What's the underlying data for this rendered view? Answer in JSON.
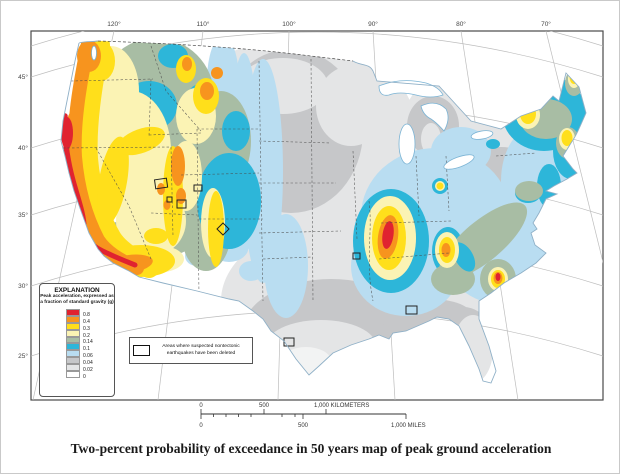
{
  "page": {
    "caption": "Two-percent probability of exceedance in 50 years map of peak ground acceleration"
  },
  "map": {
    "lon_labels": [
      "120°",
      "110°",
      "100°",
      "90°",
      "80°",
      "70°"
    ],
    "lat_labels": [
      "45°",
      "40°",
      "35°",
      "30°",
      "25°"
    ]
  },
  "legend": {
    "title": "EXPLANATION",
    "subtitle_line1": "Peak acceleration, expressed as",
    "subtitle_line2": "a fraction of standard gravity (g)",
    "items": [
      {
        "color": "#e02330",
        "label": "0.8"
      },
      {
        "color": "#f7941e",
        "label": "0.4"
      },
      {
        "color": "#ffdf1b",
        "label": "0.3"
      },
      {
        "color": "#fbf3b4",
        "label": "0.2"
      },
      {
        "color": "#a8bda4",
        "label": "0.14"
      },
      {
        "color": "#2db6d9",
        "label": "0.1"
      },
      {
        "color": "#b9ddf1",
        "label": "0.06"
      },
      {
        "color": "#c6c7c9",
        "label": "0.04"
      },
      {
        "color": "#e4e5e6",
        "label": "0.02"
      },
      {
        "color": "#ffffff",
        "label": "0"
      }
    ]
  },
  "annotation_box": {
    "line1": "Areas where suspected nontectonic",
    "line2": "earthquakes have been deleted"
  },
  "scale_bar": {
    "km_0": "0",
    "km_500": "500",
    "km_1000": "1,000 KILOMETERS",
    "mi_0": "0",
    "mi_500": "500",
    "mi_1000": "1,000 MILES"
  }
}
